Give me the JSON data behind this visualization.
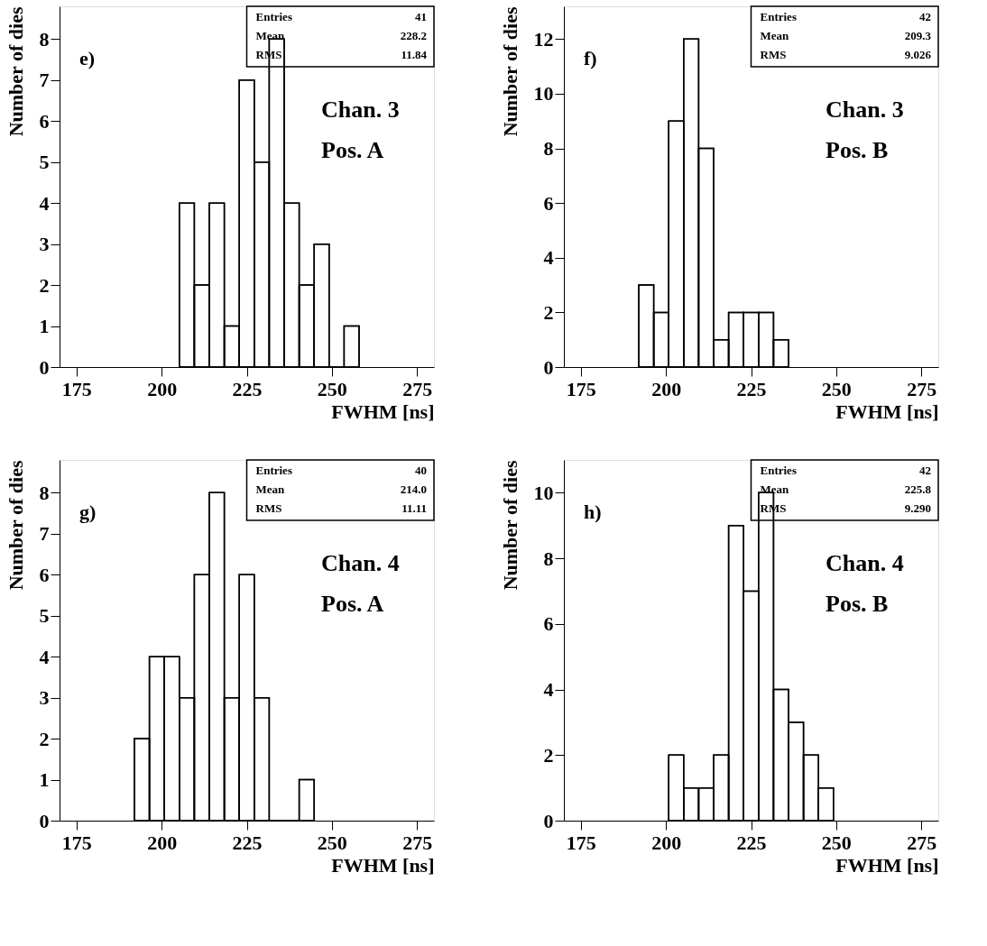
{
  "chart_data": [
    {
      "type": "histogram",
      "xlabel": "FWHM [ns]",
      "ylabel": "Number of dies",
      "bins": [
        205.2,
        209.6,
        214.0,
        218.4,
        222.8,
        227.2,
        231.6,
        236.0,
        240.4,
        244.8,
        249.2,
        253.6,
        258.0
      ],
      "values": [
        4,
        2,
        4,
        1,
        7,
        5,
        8,
        4,
        2,
        3,
        0,
        1
      ],
      "color": "#000000",
      "xlim": [
        170,
        280
      ],
      "xticks": [
        175,
        200,
        225,
        250,
        275
      ],
      "ylim": [
        0,
        8.8
      ],
      "yticks": [
        0,
        1,
        2,
        3,
        4,
        5,
        6,
        7,
        8
      ],
      "grid": false,
      "annotations": [
        "e)",
        "Chan. 3",
        "Pos. A",
        "Entries",
        "41",
        "Mean",
        "228.2",
        "RMS",
        "11.84"
      ]
    },
    {
      "type": "histogram",
      "xlabel": "FWHM [ns]",
      "ylabel": "Number of dies",
      "bins": [
        192.0,
        196.4,
        200.8,
        205.2,
        209.6,
        214.0,
        218.4,
        222.8,
        227.2,
        231.6,
        236.0
      ],
      "values": [
        3,
        2,
        9,
        12,
        8,
        1,
        2,
        2,
        2,
        1
      ],
      "color": "#000000",
      "xlim": [
        170,
        280
      ],
      "xticks": [
        175,
        200,
        225,
        250,
        275
      ],
      "ylim": [
        0,
        13.2
      ],
      "yticks": [
        0,
        2,
        4,
        6,
        8,
        10,
        12
      ],
      "grid": false,
      "annotations": [
        "f)",
        "Chan. 3",
        "Pos. B",
        "Entries",
        "42",
        "Mean",
        "209.3",
        "RMS",
        "9.026"
      ]
    },
    {
      "type": "histogram",
      "xlabel": "FWHM [ns]",
      "ylabel": "Number of dies",
      "bins": [
        192.0,
        196.4,
        200.8,
        205.2,
        209.6,
        214.0,
        218.4,
        222.8,
        227.2,
        231.6,
        236.0,
        240.4,
        244.8
      ],
      "values": [
        2,
        4,
        4,
        3,
        6,
        8,
        3,
        6,
        3,
        0,
        0,
        1
      ],
      "color": "#000000",
      "xlim": [
        170,
        280
      ],
      "xticks": [
        175,
        200,
        225,
        250,
        275
      ],
      "ylim": [
        0,
        8.8
      ],
      "yticks": [
        0,
        1,
        2,
        3,
        4,
        5,
        6,
        7,
        8
      ],
      "grid": false,
      "annotations": [
        "g)",
        "Chan. 4",
        "Pos. A",
        "Entries",
        "40",
        "Mean",
        "214.0",
        "RMS",
        "11.11"
      ]
    },
    {
      "type": "histogram",
      "xlabel": "FWHM [ns]",
      "ylabel": "Number of dies",
      "bins": [
        200.8,
        205.2,
        209.6,
        214.0,
        218.4,
        222.8,
        227.2,
        231.6,
        236.0,
        240.4,
        244.8,
        249.2
      ],
      "values": [
        2,
        1,
        1,
        2,
        9,
        7,
        10,
        4,
        3,
        2,
        1
      ],
      "color": "#000000",
      "xlim": [
        170,
        280
      ],
      "xticks": [
        175,
        200,
        225,
        250,
        275
      ],
      "ylim": [
        0,
        11.0
      ],
      "yticks": [
        0,
        2,
        4,
        6,
        8,
        10
      ],
      "grid": false,
      "annotations": [
        "h)",
        "Chan. 4",
        "Pos. B",
        "Entries",
        "42",
        "Mean",
        "225.8",
        "RMS",
        "9.290"
      ]
    }
  ]
}
